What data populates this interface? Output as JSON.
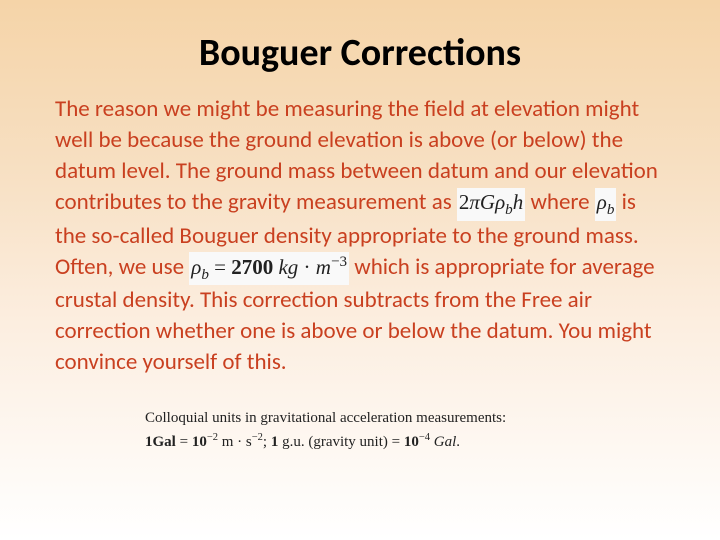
{
  "title": {
    "text": "Bouguer Corrections",
    "fontsize": 38,
    "color": "#000000",
    "weight": "bold"
  },
  "body": {
    "color": "#c94020",
    "fontsize": 23,
    "segments": {
      "s1": "The reason we might be measuring the field at elevation might well be because the ground elevation is above (or below) the datum level.  The ground mass between datum and our elevation contributes to the gravity measurement as ",
      "s2": " where ",
      "s3": " is the so-called Bouguer density appropriate to the ground mass.  Often, we use ",
      "s4": " which is appropriate for average crustal density.  This correction subtracts from the Free air correction whether one is above or below the datum.  You might convince yourself of this."
    }
  },
  "formulas": {
    "f1": {
      "html": "2<i>πGρ</i><sub><i>b</i></sub><i>h</i>",
      "fontsize": 21
    },
    "f2": {
      "html": "<i>ρ</i><sub><i>b</i></sub>",
      "fontsize": 21
    },
    "f3": {
      "html": "<i>ρ</i><sub><i>b</i></sub> = <b>2700</b> <i>kg</i> · <i>m</i><sup>−3</sup>",
      "fontsize": 21
    }
  },
  "units": {
    "line1": "Colloquial units in gravitational acceleration measurements:",
    "line2_html": "<b>1Gal</b> = <b>10</b><sup>−2</sup> m · s<sup>−2</sup>; <b>1</b> g.u. (gravity unit) = <b>10</b><sup>−4</sup> <i>Gal</i>.",
    "fontsize": 15,
    "color": "#222222"
  },
  "background": {
    "gradient_top": "#f5d4a8",
    "gradient_bottom": "#ffffff"
  }
}
